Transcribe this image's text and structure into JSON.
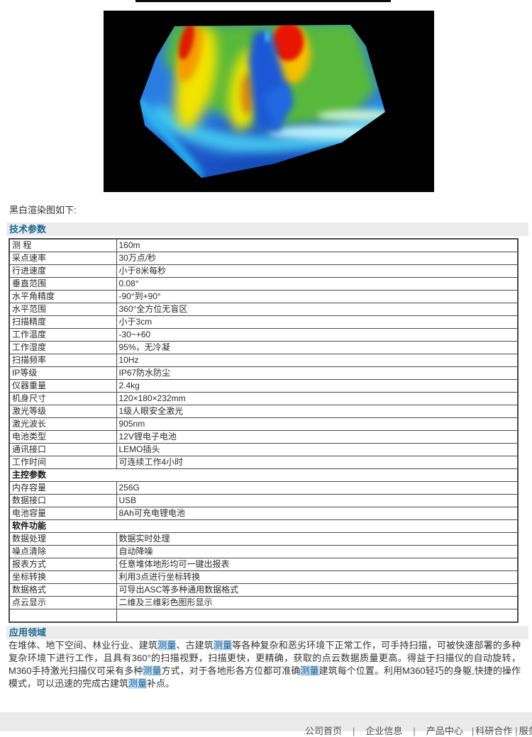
{
  "page": {
    "caption": "黑白渲染图如下:"
  },
  "sections": {
    "tech_title": "技术参数",
    "app_title": "应用领域"
  },
  "spec_table": {
    "rows": [
      {
        "type": "row",
        "label": "测 程",
        "value": "160m"
      },
      {
        "type": "row",
        "label": "采点速率",
        "value": "30万点/秒"
      },
      {
        "type": "row",
        "label": "行进速度",
        "value": "小于8米每秒"
      },
      {
        "type": "row",
        "label": "垂直范围",
        "value": "0.08°"
      },
      {
        "type": "row",
        "label": "水平角精度",
        "value": "-90°到+90°"
      },
      {
        "type": "row",
        "label": "水平范围",
        "value": "360°全方位无盲区"
      },
      {
        "type": "row",
        "label": "扫描精度",
        "value": "小于3cm"
      },
      {
        "type": "row",
        "label": "工作温度",
        "value": "-30~+60"
      },
      {
        "type": "row",
        "label": "工作湿度",
        "value": "95%，无冷凝"
      },
      {
        "type": "row",
        "label": "扫描频率",
        "value": "10Hz"
      },
      {
        "type": "row",
        "label": "IP等级",
        "value": "IP67防水防尘"
      },
      {
        "type": "row",
        "label": "仪器重量",
        "value": "2.4kg"
      },
      {
        "type": "row",
        "label": "机身尺寸",
        "value": "120×180×232mm"
      },
      {
        "type": "row",
        "label": "激光等级",
        "value": "1级人眼安全激光"
      },
      {
        "type": "row",
        "label": "激光波长",
        "value": "905nm"
      },
      {
        "type": "row",
        "label": "电池类型",
        "value": "12V锂电子电池"
      },
      {
        "type": "row",
        "label": "通讯接口",
        "value": "LEMO插头"
      },
      {
        "type": "row",
        "label": "工作时间",
        "value": "可连续工作4小时"
      },
      {
        "type": "section",
        "label": "主控参数"
      },
      {
        "type": "row",
        "label": "内存容量",
        "value": "256G"
      },
      {
        "type": "row",
        "label": "数据接口",
        "value": "USB"
      },
      {
        "type": "row",
        "label": "电池容量",
        "value": "8Ah可充电锂电池"
      },
      {
        "type": "section",
        "label": "软件功能"
      },
      {
        "type": "row",
        "label": "数据处理",
        "value": "数据实时处理"
      },
      {
        "type": "row",
        "label": "噪点清除",
        "value": "自动降噪"
      },
      {
        "type": "row",
        "label": "报表方式",
        "value": "任意堆体地形均可一键出报表"
      },
      {
        "type": "row",
        "label": "坐标转换",
        "value": "利用3点进行坐标转换"
      },
      {
        "type": "row",
        "label": "数据格式",
        "value": "可导出ASC等多种通用数据格式"
      },
      {
        "type": "row",
        "label": "点云显示",
        "value": "二维及三维彩色图形显示"
      },
      {
        "type": "row",
        "label": "",
        "value": ""
      }
    ]
  },
  "application": {
    "segments": [
      {
        "text": "在堆体、地下空间、林业行业、建筑",
        "hl": false
      },
      {
        "text": "测量",
        "hl": true
      },
      {
        "text": "、古建筑",
        "hl": false
      },
      {
        "text": "测量",
        "hl": true
      },
      {
        "text": "等各种复杂和恶劣环境下正常工作，可手持扫描，可被快速部署的多种复杂环境下进行工作，且具有360°的扫描视野，扫描更快，更精确，获取的点云数据质量更高。得益于扫描仪的自动旋转，M360手持激光扫描仪可采有多种",
        "hl": false
      },
      {
        "text": "测量",
        "hl": true
      },
      {
        "text": "方式，对于各地形各方位都可准确",
        "hl": false
      },
      {
        "text": "测量",
        "hl": true
      },
      {
        "text": "建筑每个位置。利用M360轻巧的身躯,快捷的操作模式，可以迅速的完成古建筑",
        "hl": false
      },
      {
        "text": "测量",
        "hl": true
      },
      {
        "text": "补点。",
        "hl": false
      }
    ]
  },
  "footer": {
    "links": [
      "公司首页",
      "企业信息",
      "产品中心",
      "科研合作",
      "服务"
    ],
    "separator": "|"
  },
  "heatmap_colors": {
    "high": "#e81600",
    "mid_high": "#f2c000",
    "mid": "#58b83a",
    "mid_low": "#45c8f0",
    "low": "#1b55c8",
    "background": "#000000"
  }
}
